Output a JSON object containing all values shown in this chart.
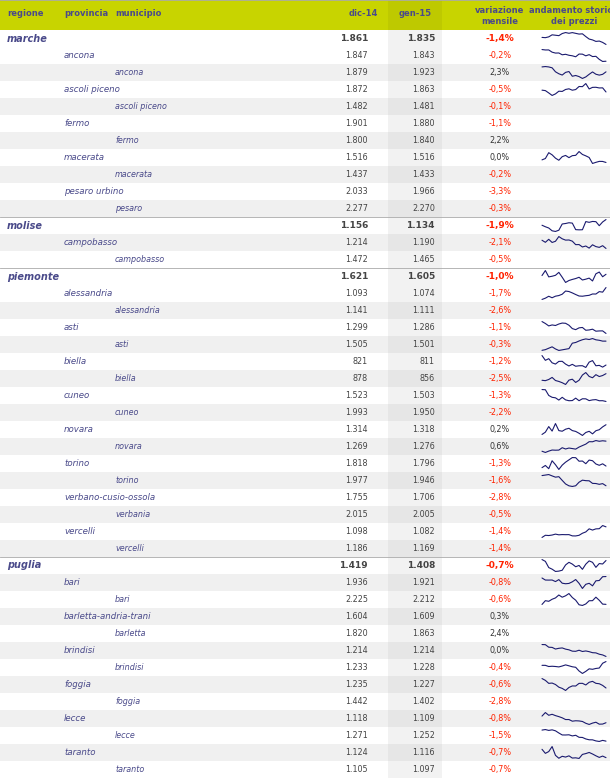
{
  "header_bg": "#c8d400",
  "header_text_color": "#4a4a8a",
  "variation_neg_color": "#ff2200",
  "variation_pos_color": "#333333",
  "body_bg": "#ffffff",
  "alt_bg": "#f0f0f0",
  "sep_color": "#aaaaaa",
  "gen15_shade": "#cccccc",
  "region_color": "#4a4a8a",
  "rows": [
    {
      "level": 0,
      "label": "marche",
      "dic14": "1.861",
      "gen15": "1.835",
      "var": "-1,4%",
      "var_neg": true,
      "has_chart": true,
      "chart_id": 1
    },
    {
      "level": 1,
      "label": "ancona",
      "dic14": "1.847",
      "gen15": "1.843",
      "var": "-0,2%",
      "var_neg": true,
      "has_chart": true,
      "chart_id": 2
    },
    {
      "level": 2,
      "label": "ancona",
      "dic14": "1.879",
      "gen15": "1.923",
      "var": "2,3%",
      "var_neg": false,
      "has_chart": true,
      "chart_id": 3
    },
    {
      "level": 1,
      "label": "ascoli piceno",
      "dic14": "1.872",
      "gen15": "1.863",
      "var": "-0,5%",
      "var_neg": true,
      "has_chart": true,
      "chart_id": 4
    },
    {
      "level": 2,
      "label": "ascoli piceno",
      "dic14": "1.482",
      "gen15": "1.481",
      "var": "-0,1%",
      "var_neg": true,
      "has_chart": false,
      "chart_id": 0
    },
    {
      "level": 1,
      "label": "fermo",
      "dic14": "1.901",
      "gen15": "1.880",
      "var": "-1,1%",
      "var_neg": true,
      "has_chart": false,
      "chart_id": 0
    },
    {
      "level": 2,
      "label": "fermo",
      "dic14": "1.800",
      "gen15": "1.840",
      "var": "2,2%",
      "var_neg": false,
      "has_chart": false,
      "chart_id": 0
    },
    {
      "level": 1,
      "label": "macerata",
      "dic14": "1.516",
      "gen15": "1.516",
      "var": "0,0%",
      "var_neg": false,
      "has_chart": true,
      "chart_id": 5
    },
    {
      "level": 2,
      "label": "macerata",
      "dic14": "1.437",
      "gen15": "1.433",
      "var": "-0,2%",
      "var_neg": true,
      "has_chart": false,
      "chart_id": 0
    },
    {
      "level": 1,
      "label": "pesaro urbino",
      "dic14": "2.033",
      "gen15": "1.966",
      "var": "-3,3%",
      "var_neg": true,
      "has_chart": false,
      "chart_id": 0
    },
    {
      "level": 2,
      "label": "pesaro",
      "dic14": "2.277",
      "gen15": "2.270",
      "var": "-0,3%",
      "var_neg": true,
      "has_chart": false,
      "chart_id": 0
    },
    {
      "level": 0,
      "label": "molise",
      "dic14": "1.156",
      "gen15": "1.134",
      "var": "-1,9%",
      "var_neg": true,
      "has_chart": true,
      "chart_id": 6
    },
    {
      "level": 1,
      "label": "campobasso",
      "dic14": "1.214",
      "gen15": "1.190",
      "var": "-2,1%",
      "var_neg": true,
      "has_chart": true,
      "chart_id": 7
    },
    {
      "level": 2,
      "label": "campobasso",
      "dic14": "1.472",
      "gen15": "1.465",
      "var": "-0,5%",
      "var_neg": true,
      "has_chart": false,
      "chart_id": 0
    },
    {
      "level": 0,
      "label": "piemonte",
      "dic14": "1.621",
      "gen15": "1.605",
      "var": "-1,0%",
      "var_neg": true,
      "has_chart": true,
      "chart_id": 8
    },
    {
      "level": 1,
      "label": "alessandria",
      "dic14": "1.093",
      "gen15": "1.074",
      "var": "-1,7%",
      "var_neg": true,
      "has_chart": true,
      "chart_id": 9
    },
    {
      "level": 2,
      "label": "alessandria",
      "dic14": "1.141",
      "gen15": "1.111",
      "var": "-2,6%",
      "var_neg": true,
      "has_chart": false,
      "chart_id": 0
    },
    {
      "level": 1,
      "label": "asti",
      "dic14": "1.299",
      "gen15": "1.286",
      "var": "-1,1%",
      "var_neg": true,
      "has_chart": true,
      "chart_id": 10
    },
    {
      "level": 2,
      "label": "asti",
      "dic14": "1.505",
      "gen15": "1.501",
      "var": "-0,3%",
      "var_neg": true,
      "has_chart": true,
      "chart_id": 11
    },
    {
      "level": 1,
      "label": "biella",
      "dic14": "821",
      "gen15": "811",
      "var": "-1,2%",
      "var_neg": true,
      "has_chart": true,
      "chart_id": 12
    },
    {
      "level": 2,
      "label": "biella",
      "dic14": "878",
      "gen15": "856",
      "var": "-2,5%",
      "var_neg": true,
      "has_chart": true,
      "chart_id": 13
    },
    {
      "level": 1,
      "label": "cuneo",
      "dic14": "1.523",
      "gen15": "1.503",
      "var": "-1,3%",
      "var_neg": true,
      "has_chart": true,
      "chart_id": 14
    },
    {
      "level": 2,
      "label": "cuneo",
      "dic14": "1.993",
      "gen15": "1.950",
      "var": "-2,2%",
      "var_neg": true,
      "has_chart": false,
      "chart_id": 0
    },
    {
      "level": 1,
      "label": "novara",
      "dic14": "1.314",
      "gen15": "1.318",
      "var": "0,2%",
      "var_neg": false,
      "has_chart": true,
      "chart_id": 15
    },
    {
      "level": 2,
      "label": "novara",
      "dic14": "1.269",
      "gen15": "1.276",
      "var": "0,6%",
      "var_neg": false,
      "has_chart": true,
      "chart_id": 16
    },
    {
      "level": 1,
      "label": "torino",
      "dic14": "1.818",
      "gen15": "1.796",
      "var": "-1,3%",
      "var_neg": true,
      "has_chart": true,
      "chart_id": 17
    },
    {
      "level": 2,
      "label": "torino",
      "dic14": "1.977",
      "gen15": "1.946",
      "var": "-1,6%",
      "var_neg": true,
      "has_chart": true,
      "chart_id": 18
    },
    {
      "level": 1,
      "label": "verbano-cusio-ossola",
      "dic14": "1.755",
      "gen15": "1.706",
      "var": "-2,8%",
      "var_neg": true,
      "has_chart": false,
      "chart_id": 0
    },
    {
      "level": 2,
      "label": "verbania",
      "dic14": "2.015",
      "gen15": "2.005",
      "var": "-0,5%",
      "var_neg": true,
      "has_chart": false,
      "chart_id": 0
    },
    {
      "level": 1,
      "label": "vercelli",
      "dic14": "1.098",
      "gen15": "1.082",
      "var": "-1,4%",
      "var_neg": true,
      "has_chart": true,
      "chart_id": 19
    },
    {
      "level": 2,
      "label": "vercelli",
      "dic14": "1.186",
      "gen15": "1.169",
      "var": "-1,4%",
      "var_neg": true,
      "has_chart": false,
      "chart_id": 0
    },
    {
      "level": 0,
      "label": "puglia",
      "dic14": "1.419",
      "gen15": "1.408",
      "var": "-0,7%",
      "var_neg": true,
      "has_chart": true,
      "chart_id": 20
    },
    {
      "level": 1,
      "label": "bari",
      "dic14": "1.936",
      "gen15": "1.921",
      "var": "-0,8%",
      "var_neg": true,
      "has_chart": true,
      "chart_id": 21
    },
    {
      "level": 2,
      "label": "bari",
      "dic14": "2.225",
      "gen15": "2.212",
      "var": "-0,6%",
      "var_neg": true,
      "has_chart": true,
      "chart_id": 22
    },
    {
      "level": 1,
      "label": "barletta-andria-trani",
      "dic14": "1.604",
      "gen15": "1.609",
      "var": "0,3%",
      "var_neg": false,
      "has_chart": false,
      "chart_id": 0
    },
    {
      "level": 2,
      "label": "barletta",
      "dic14": "1.820",
      "gen15": "1.863",
      "var": "2,4%",
      "var_neg": false,
      "has_chart": false,
      "chart_id": 0
    },
    {
      "level": 1,
      "label": "brindisi",
      "dic14": "1.214",
      "gen15": "1.214",
      "var": "0,0%",
      "var_neg": false,
      "has_chart": true,
      "chart_id": 23
    },
    {
      "level": 2,
      "label": "brindisi",
      "dic14": "1.233",
      "gen15": "1.228",
      "var": "-0,4%",
      "var_neg": true,
      "has_chart": true,
      "chart_id": 24
    },
    {
      "level": 1,
      "label": "foggia",
      "dic14": "1.235",
      "gen15": "1.227",
      "var": "-0,6%",
      "var_neg": true,
      "has_chart": true,
      "chart_id": 25
    },
    {
      "level": 2,
      "label": "foggia",
      "dic14": "1.442",
      "gen15": "1.402",
      "var": "-2,8%",
      "var_neg": true,
      "has_chart": false,
      "chart_id": 0
    },
    {
      "level": 1,
      "label": "lecce",
      "dic14": "1.118",
      "gen15": "1.109",
      "var": "-0,8%",
      "var_neg": true,
      "has_chart": true,
      "chart_id": 26
    },
    {
      "level": 2,
      "label": "lecce",
      "dic14": "1.271",
      "gen15": "1.252",
      "var": "-1,5%",
      "var_neg": true,
      "has_chart": true,
      "chart_id": 27
    },
    {
      "level": 1,
      "label": "taranto",
      "dic14": "1.124",
      "gen15": "1.116",
      "var": "-0,7%",
      "var_neg": true,
      "has_chart": true,
      "chart_id": 28
    },
    {
      "level": 2,
      "label": "taranto",
      "dic14": "1.105",
      "gen15": "1.097",
      "var": "-0,7%",
      "var_neg": true,
      "has_chart": false,
      "chart_id": 0
    }
  ]
}
